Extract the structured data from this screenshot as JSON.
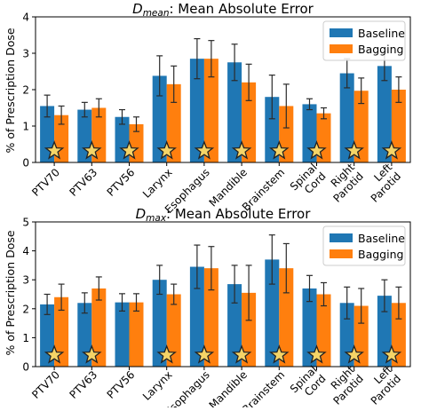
{
  "ylabel": "% of Prescription Dose",
  "colors": {
    "baseline": "#1f77b4",
    "bagging": "#ff7f0e",
    "star": "#f5d467"
  },
  "chart_data": [
    {
      "type": "bar",
      "title_symbol": "D",
      "title_subscript": "mean",
      "title_rest": ": Mean Absolute Error",
      "ylabel": "% of Prescription Dose",
      "ylim": [
        0,
        4
      ],
      "yticks": [
        "0",
        "1",
        "2",
        "3",
        "4"
      ],
      "legend_position": "top-right",
      "categories": [
        "PTV70",
        "PTV63",
        "PTV56",
        "Larynx",
        "Esophagus",
        "Mandible",
        "Brainstem",
        "Spinal\nCord",
        "Right\nParotid",
        "Left\nParotid"
      ],
      "series": [
        {
          "name": "Baseline",
          "values": [
            1.55,
            1.45,
            1.25,
            2.38,
            2.85,
            2.75,
            1.8,
            1.6,
            2.45,
            2.65
          ],
          "err": [
            0.3,
            0.2,
            0.2,
            0.55,
            0.55,
            0.5,
            0.6,
            0.15,
            0.4,
            0.4
          ]
        },
        {
          "name": "Bagging",
          "values": [
            1.3,
            1.5,
            1.05,
            2.15,
            2.85,
            2.2,
            1.55,
            1.35,
            1.97,
            2.0
          ],
          "err": [
            0.25,
            0.25,
            0.2,
            0.5,
            0.5,
            0.5,
            0.6,
            0.15,
            0.35,
            0.35
          ]
        }
      ],
      "significance_stars": [
        true,
        true,
        true,
        true,
        true,
        true,
        true,
        true,
        true,
        true
      ]
    },
    {
      "type": "bar",
      "title_symbol": "D",
      "title_subscript": "max",
      "title_rest": ": Mean Absolute Error",
      "ylabel": "% of Prescription Dose",
      "ylim": [
        0,
        5
      ],
      "yticks": [
        "0",
        "1",
        "2",
        "3",
        "4",
        "5"
      ],
      "legend_position": "top-right",
      "categories": [
        "PTV70",
        "PTV63",
        "PTV56",
        "Larynx",
        "Esophagus",
        "Mandible",
        "Brainstem",
        "Spinal\nCord",
        "Right\nParotid",
        "Left\nParotid"
      ],
      "series": [
        {
          "name": "Baseline",
          "values": [
            2.15,
            2.2,
            2.22,
            3.0,
            3.45,
            2.85,
            3.7,
            2.7,
            2.2,
            2.45
          ],
          "err": [
            0.35,
            0.35,
            0.3,
            0.5,
            0.75,
            0.65,
            0.85,
            0.45,
            0.55,
            0.55
          ]
        },
        {
          "name": "Bagging",
          "values": [
            2.4,
            2.7,
            2.22,
            2.5,
            3.4,
            2.55,
            3.4,
            2.5,
            2.1,
            2.2
          ],
          "err": [
            0.45,
            0.4,
            0.3,
            0.35,
            0.75,
            0.95,
            0.85,
            0.4,
            0.6,
            0.55
          ]
        }
      ],
      "significance_stars": [
        true,
        true,
        false,
        true,
        true,
        true,
        true,
        true,
        true,
        true
      ]
    }
  ]
}
